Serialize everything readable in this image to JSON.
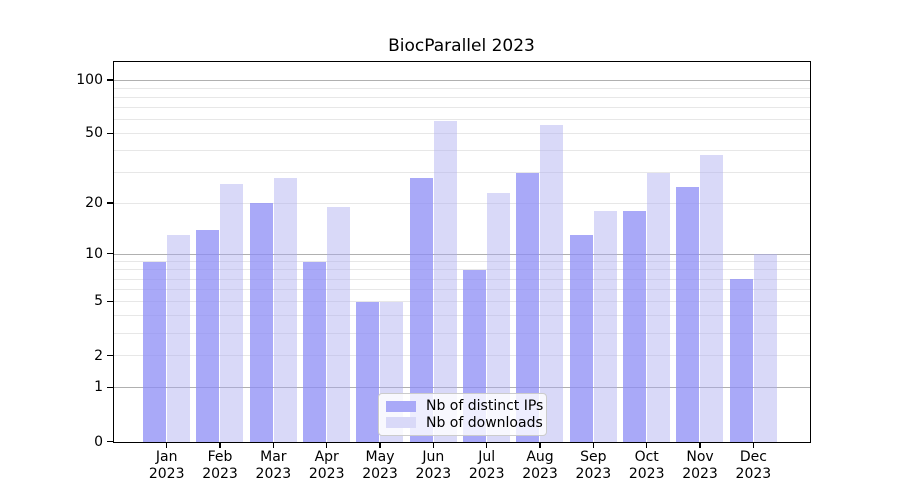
{
  "chart_data": {
    "type": "bar",
    "title": "BiocParallel 2023",
    "categories": [
      "Jan",
      "Feb",
      "Mar",
      "Apr",
      "May",
      "Jun",
      "Jul",
      "Aug",
      "Sep",
      "Oct",
      "Nov",
      "Dec"
    ],
    "year": "2023",
    "series": [
      {
        "name": "Nb of distinct IPs",
        "color": "#a9a9f8",
        "fill": "rgba(140,140,246,0.75)",
        "values": [
          9,
          14,
          20,
          9,
          5,
          28,
          8,
          30,
          13,
          18,
          25,
          7
        ]
      },
      {
        "name": "Nb of downloads",
        "color": "#d9d9f8",
        "fill": "rgba(171,171,239,0.45)",
        "values": [
          13,
          26,
          28,
          19,
          5,
          59,
          23,
          56,
          18,
          30,
          38,
          10
        ]
      }
    ],
    "yscale": "log1p",
    "ylim": [
      0,
      120
    ],
    "yticks": [
      0,
      1,
      2,
      5,
      10,
      20,
      50,
      100
    ],
    "major_gridlines": [
      1,
      10,
      100
    ],
    "minor_gridlines": [
      2,
      3,
      4,
      5,
      6,
      7,
      8,
      9,
      20,
      30,
      40,
      50,
      60,
      70,
      80,
      90
    ],
    "grid": true,
    "legend_position": "lower center",
    "colors": {
      "major_grid": "#b0b0b0",
      "minor_grid": "#e7e7e7",
      "axis": "#000000",
      "legend_border": "#cccccc",
      "text": "#000000"
    }
  }
}
